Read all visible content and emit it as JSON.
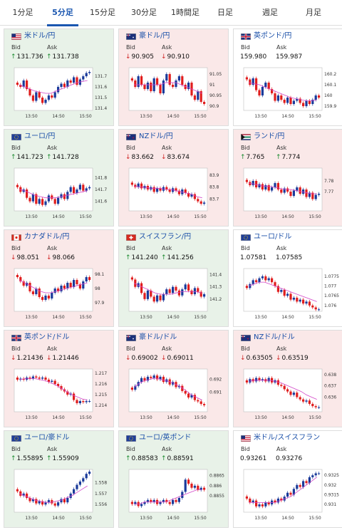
{
  "tabs": [
    {
      "label": "1分足",
      "active": false
    },
    {
      "label": "5分足",
      "active": true
    },
    {
      "label": "15分足",
      "active": false
    },
    {
      "label": "30分足",
      "active": false
    },
    {
      "label": "1時間足",
      "active": false
    },
    {
      "label": "日足",
      "active": false
    },
    {
      "label": "週足",
      "active": false
    },
    {
      "label": "月足",
      "active": false
    }
  ],
  "bid_label": "Bid",
  "ask_label": "Ask",
  "x_ticks": [
    "13:50",
    "14:50",
    "15:50"
  ],
  "colors": {
    "up_candle": "#1a3a9a",
    "down_candle": "#e01d1d",
    "ma_line": "#d246c8",
    "ma_line2": "#6ec8e8",
    "pair_text": "#1a4fa8",
    "active_tab": "#1a56b0",
    "up_bg": "#e8f2e8",
    "down_bg": "#fae8e8"
  },
  "cards": [
    {
      "pair": "米ドル/円",
      "flag": "us-flag-icon",
      "state": "up",
      "bid_dir": "up",
      "ask_dir": "up",
      "bid": "131.736",
      "ask": "131.738",
      "chart_data": {
        "type": "candlestick",
        "y_ticks": [
          "131.7",
          "131.6",
          "131.5",
          "131.4"
        ],
        "ylim": [
          131.38,
          131.78
        ],
        "closes": [
          131.62,
          131.6,
          131.66,
          131.58,
          131.52,
          131.47,
          131.55,
          131.5,
          131.45,
          131.48,
          131.52,
          131.5,
          131.55,
          131.6,
          131.63,
          131.6,
          131.66,
          131.64,
          131.69,
          131.62,
          131.67,
          131.7,
          131.73,
          131.74
        ],
        "ma": [
          131.62,
          131.6,
          131.58,
          131.56,
          131.55,
          131.54,
          131.54,
          131.56,
          131.58,
          131.6,
          131.62,
          131.64,
          131.65,
          131.66
        ]
      }
    },
    {
      "pair": "豪ドル/円",
      "flag": "au-flag-icon",
      "state": "down",
      "bid_dir": "down",
      "ask_dir": "down",
      "bid": "90.905",
      "ask": "90.910",
      "chart_data": {
        "type": "candlestick",
        "y_ticks": [
          "91.05",
          "91",
          "90.95",
          "90.9"
        ],
        "ylim": [
          90.88,
          91.08
        ],
        "closes": [
          91.02,
          90.99,
          91.04,
          91.0,
          90.98,
          91.01,
          90.97,
          91.03,
          91.0,
          90.96,
          91.02,
          91.05,
          91.0,
          90.99,
          91.02,
          91.04,
          91.0,
          90.98,
          91.01,
          90.95,
          90.93,
          90.97,
          90.92,
          90.91
        ],
        "ma": [
          91.0,
          91.0,
          91.0,
          91.0,
          91.0,
          91.0,
          91.01,
          91.01,
          91.01,
          91.0,
          90.99,
          90.98,
          90.97,
          90.96
        ]
      }
    },
    {
      "pair": "英ポンド/円",
      "flag": "gb-flag-icon",
      "state": "flat",
      "bid_dir": "",
      "ask_dir": "",
      "bid": "159.980",
      "ask": "159.987",
      "chart_data": {
        "type": "candlestick",
        "y_ticks": [
          "160.2",
          "160.1",
          "160",
          "159.9"
        ],
        "ylim": [
          159.86,
          160.26
        ],
        "closes": [
          160.15,
          160.1,
          160.16,
          160.05,
          160.0,
          160.08,
          160.12,
          160.06,
          160.02,
          159.95,
          160.0,
          159.96,
          159.93,
          159.98,
          159.92,
          159.95,
          159.97,
          159.93,
          159.9,
          159.95,
          159.92,
          159.96,
          160.0,
          159.98
        ],
        "ma": [
          160.12,
          160.11,
          160.1,
          160.08,
          160.06,
          160.04,
          160.02,
          160.0,
          159.98,
          159.97,
          159.96,
          159.95,
          159.95,
          159.96
        ]
      }
    },
    {
      "pair": "ユーロ/円",
      "flag": "eu-flag-icon",
      "state": "up",
      "bid_dir": "up",
      "ask_dir": "up",
      "bid": "141.723",
      "ask": "141.728",
      "chart_data": {
        "type": "candlestick",
        "y_ticks": [
          "141.8",
          "141.7",
          "141.6"
        ],
        "ylim": [
          141.52,
          141.88
        ],
        "closes": [
          141.72,
          141.68,
          141.7,
          141.63,
          141.6,
          141.66,
          141.58,
          141.62,
          141.57,
          141.6,
          141.65,
          141.62,
          141.58,
          141.63,
          141.66,
          141.62,
          141.68,
          141.72,
          141.67,
          141.7,
          141.74,
          141.69,
          141.71,
          141.72
        ],
        "ma": [
          141.7,
          141.69,
          141.67,
          141.65,
          141.64,
          141.63,
          141.63,
          141.63,
          141.64,
          141.65,
          141.66,
          141.67,
          141.68,
          141.69
        ]
      }
    },
    {
      "pair": "NZドル/円",
      "flag": "nz-flag-icon",
      "state": "down",
      "bid_dir": "down",
      "ask_dir": "down",
      "bid": "83.662",
      "ask": "83.674",
      "chart_data": {
        "type": "candlestick",
        "y_ticks": [
          "83.9",
          "83.8",
          "83.7"
        ],
        "ylim": [
          83.6,
          83.96
        ],
        "closes": [
          83.82,
          83.8,
          83.83,
          83.79,
          83.81,
          83.78,
          83.8,
          83.76,
          83.79,
          83.77,
          83.8,
          83.78,
          83.76,
          83.79,
          83.77,
          83.74,
          83.78,
          83.75,
          83.72,
          83.74,
          83.7,
          83.68,
          83.66,
          83.67
        ],
        "ma": [
          83.81,
          83.8,
          83.8,
          83.79,
          83.79,
          83.79,
          83.78,
          83.78,
          83.77,
          83.76,
          83.75,
          83.74,
          83.72,
          83.71
        ]
      }
    },
    {
      "pair": "ランド/円",
      "flag": "za-flag-icon",
      "state": "down",
      "bid_dir": "up",
      "ask_dir": "up",
      "bid": "7.765",
      "ask": "7.774",
      "chart_data": {
        "type": "candlestick",
        "y_ticks": [
          "7.78",
          "7.77"
        ],
        "ylim": [
          7.752,
          7.792
        ],
        "closes": [
          7.779,
          7.776,
          7.78,
          7.774,
          7.777,
          7.772,
          7.776,
          7.771,
          7.774,
          7.778,
          7.772,
          7.769,
          7.773,
          7.77,
          7.766,
          7.771,
          7.774,
          7.768,
          7.772,
          7.765,
          7.769,
          7.763,
          7.767,
          7.768
        ],
        "ma": [
          7.778,
          7.777,
          7.776,
          7.775,
          7.775,
          7.774,
          7.773,
          7.772,
          7.772,
          7.771,
          7.77,
          7.769,
          7.768,
          7.768
        ]
      }
    },
    {
      "pair": "カナダドル/円",
      "flag": "ca-flag-icon",
      "state": "down",
      "bid_dir": "down",
      "ask_dir": "down",
      "bid": "98.051",
      "ask": "98.066",
      "chart_data": {
        "type": "candlestick",
        "y_ticks": [
          "98.1",
          "98",
          "97.9"
        ],
        "ylim": [
          97.84,
          98.14
        ],
        "closes": [
          98.08,
          98.05,
          98.02,
          98.04,
          97.98,
          97.96,
          98.0,
          97.94,
          97.92,
          97.95,
          97.93,
          97.97,
          98.0,
          97.98,
          98.02,
          98.0,
          98.04,
          98.01,
          98.06,
          98.03,
          98.0,
          98.05,
          98.08,
          98.06
        ],
        "ma": [
          98.06,
          98.04,
          98.02,
          98.0,
          97.98,
          97.97,
          97.97,
          97.98,
          97.99,
          98.0,
          98.01,
          98.02,
          98.03,
          98.04
        ]
      }
    },
    {
      "pair": "スイスフラン/円",
      "flag": "ch-flag-icon",
      "state": "up",
      "bid_dir": "up",
      "ask_dir": "up",
      "bid": "141.240",
      "ask": "141.256",
      "chart_data": {
        "type": "candlestick",
        "y_ticks": [
          "141.4",
          "141.3",
          "141.2"
        ],
        "ylim": [
          141.1,
          141.45
        ],
        "closes": [
          141.36,
          141.3,
          141.33,
          141.25,
          141.2,
          141.27,
          141.22,
          141.18,
          141.23,
          141.19,
          141.24,
          141.28,
          141.25,
          141.3,
          141.27,
          141.23,
          141.28,
          141.32,
          141.27,
          141.24,
          141.29,
          141.26,
          141.22,
          141.24
        ],
        "ma": [
          141.33,
          141.31,
          141.29,
          141.27,
          141.25,
          141.24,
          141.24,
          141.24,
          141.25,
          141.26,
          141.26,
          141.26,
          141.26,
          141.25
        ]
      }
    },
    {
      "pair": "ユーロ/ドル",
      "flag": "euus-flag-icon",
      "state": "flat",
      "bid_dir": "",
      "ask_dir": "",
      "bid": "1.07581",
      "ask": "1.07585",
      "chart_data": {
        "type": "candlestick",
        "y_ticks": [
          "1.0775",
          "1.077",
          "1.0765",
          "1.076"
        ],
        "ylim": [
          1.0757,
          1.0779
        ],
        "closes": [
          1.0769,
          1.0771,
          1.0773,
          1.0772,
          1.0774,
          1.0775,
          1.0773,
          1.0774,
          1.0772,
          1.077,
          1.0767,
          1.0768,
          1.0765,
          1.0766,
          1.0763,
          1.0764,
          1.0762,
          1.0763,
          1.0761,
          1.0762,
          1.076,
          1.0759,
          1.0758,
          1.0758
        ],
        "ma": [
          1.077,
          1.0771,
          1.0772,
          1.0772,
          1.0771,
          1.077,
          1.0769,
          1.0768,
          1.0767,
          1.0766,
          1.0765,
          1.0764,
          1.0763,
          1.0762
        ]
      }
    },
    {
      "pair": "英ポンド/ドル",
      "flag": "gbus-flag-icon",
      "state": "down",
      "bid_dir": "down",
      "ask_dir": "down",
      "bid": "1.21436",
      "ask": "1.21446",
      "chart_data": {
        "type": "candlestick",
        "y_ticks": [
          "1.217",
          "1.216",
          "1.215",
          "1.214"
        ],
        "ylim": [
          1.2134,
          1.2174
        ],
        "closes": [
          1.2164,
          1.2165,
          1.2164,
          1.2166,
          1.2165,
          1.2167,
          1.2166,
          1.2165,
          1.2166,
          1.2164,
          1.2162,
          1.2163,
          1.216,
          1.2158,
          1.2155,
          1.2153,
          1.215,
          1.2151,
          1.2145,
          1.2142,
          1.2144,
          1.2143,
          1.2144,
          1.2144
        ],
        "ma": [
          1.2164,
          1.2165,
          1.2165,
          1.2165,
          1.2164,
          1.2163,
          1.2161,
          1.2159,
          1.2156,
          1.2153,
          1.215,
          1.2148,
          1.2146,
          1.2145
        ]
      }
    },
    {
      "pair": "豪ドル/ドル",
      "flag": "auus-flag-icon",
      "state": "down",
      "bid_dir": "down",
      "ask_dir": "down",
      "bid": "0.69002",
      "ask": "0.69011",
      "chart_data": {
        "type": "candlestick",
        "y_ticks": [
          "0.692",
          "0.691"
        ],
        "ylim": [
          0.6895,
          0.6928
        ],
        "closes": [
          0.6912,
          0.6915,
          0.6918,
          0.6921,
          0.6919,
          0.6922,
          0.6921,
          0.6923,
          0.692,
          0.6922,
          0.6918,
          0.692,
          0.6916,
          0.6918,
          0.6914,
          0.6915,
          0.6911,
          0.6909,
          0.6906,
          0.6908,
          0.6904,
          0.6903,
          0.6901,
          0.69
        ],
        "ma": [
          0.6914,
          0.6917,
          0.6919,
          0.692,
          0.6921,
          0.692,
          0.6919,
          0.6918,
          0.6916,
          0.6914,
          0.6911,
          0.6908,
          0.6906,
          0.6904
        ]
      }
    },
    {
      "pair": "NZドル/ドル",
      "flag": "nzus-flag-icon",
      "state": "down",
      "bid_dir": "down",
      "ask_dir": "down",
      "bid": "0.63505",
      "ask": "0.63519",
      "chart_data": {
        "type": "candlestick",
        "y_ticks": [
          "0.638",
          "0.637",
          "0.636"
        ],
        "ylim": [
          0.6347,
          0.6385
        ],
        "closes": [
          0.6373,
          0.6376,
          0.6374,
          0.6377,
          0.6375,
          0.6376,
          0.6374,
          0.6377,
          0.6373,
          0.6375,
          0.6371,
          0.637,
          0.6367,
          0.6365,
          0.6362,
          0.6364,
          0.636,
          0.6358,
          0.6356,
          0.6357,
          0.6354,
          0.6352,
          0.6351,
          0.6351
        ],
        "ma": [
          0.6374,
          0.6375,
          0.6375,
          0.6375,
          0.6375,
          0.6374,
          0.6373,
          0.6371,
          0.6369,
          0.6367,
          0.6365,
          0.6362,
          0.636,
          0.6358
        ]
      }
    },
    {
      "pair": "ユーロ/豪ドル",
      "flag": "euau-flag-icon",
      "state": "up",
      "bid_dir": "up",
      "ask_dir": "up",
      "bid": "1.55895",
      "ask": "1.55909",
      "chart_data": {
        "type": "candlestick",
        "y_ticks": [
          "1.558",
          "1.557",
          "1.556"
        ],
        "ylim": [
          1.5553,
          1.5592
        ],
        "closes": [
          1.5572,
          1.5568,
          1.557,
          1.5566,
          1.5563,
          1.5565,
          1.5561,
          1.5563,
          1.556,
          1.5562,
          1.5564,
          1.5561,
          1.5559,
          1.5562,
          1.5565,
          1.5562,
          1.5566,
          1.557,
          1.5574,
          1.5578,
          1.5581,
          1.5584,
          1.5588,
          1.559
        ],
        "ma": [
          1.557,
          1.5568,
          1.5566,
          1.5564,
          1.5563,
          1.5562,
          1.5562,
          1.5563,
          1.5564,
          1.5566,
          1.5568,
          1.5571,
          1.5574,
          1.5577
        ]
      }
    },
    {
      "pair": "ユーロ/英ポンド",
      "flag": "eugb-flag-icon",
      "state": "up",
      "bid_dir": "up",
      "ask_dir": "up",
      "bid": "0.88583",
      "ask": "0.88591",
      "chart_data": {
        "type": "candlestick",
        "y_ticks": [
          "0.8865",
          "0.886",
          "0.8855"
        ],
        "ylim": [
          0.8847,
          0.8868
        ],
        "closes": [
          0.8851,
          0.8852,
          0.885,
          0.8851,
          0.8852,
          0.8853,
          0.8852,
          0.8853,
          0.8851,
          0.8852,
          0.8853,
          0.8852,
          0.8851,
          0.8853,
          0.8852,
          0.8854,
          0.8857,
          0.8863,
          0.8861,
          0.8859,
          0.886,
          0.8858,
          0.8859,
          0.8858
        ],
        "ma": [
          0.8851,
          0.8851,
          0.8852,
          0.8852,
          0.8852,
          0.8852,
          0.8852,
          0.8853,
          0.8854,
          0.8855,
          0.8856,
          0.8857,
          0.8858,
          0.8858
        ]
      }
    },
    {
      "pair": "米ドル/スイスフラン",
      "flag": "usch-flag-icon",
      "state": "flat",
      "bid_dir": "",
      "ask_dir": "",
      "bid": "0.93261",
      "ask": "0.93276",
      "chart_data": {
        "type": "candlestick",
        "y_ticks": [
          "0.9325",
          "0.932",
          "0.9315",
          "0.931"
        ],
        "ylim": [
          0.9306,
          0.9328
        ],
        "closes": [
          0.9313,
          0.9311,
          0.9312,
          0.9309,
          0.931,
          0.9309,
          0.9311,
          0.931,
          0.9312,
          0.9311,
          0.9313,
          0.9312,
          0.9314,
          0.9316,
          0.9315,
          0.9318,
          0.932,
          0.9319,
          0.9322,
          0.9321,
          0.9324,
          0.9325,
          0.9326,
          0.9326
        ],
        "ma": [
          0.9311,
          0.9311,
          0.9311,
          0.9311,
          0.9311,
          0.9311,
          0.9312,
          0.9313,
          0.9314,
          0.9316,
          0.9318,
          0.932,
          0.9322,
          0.9324
        ]
      }
    }
  ]
}
